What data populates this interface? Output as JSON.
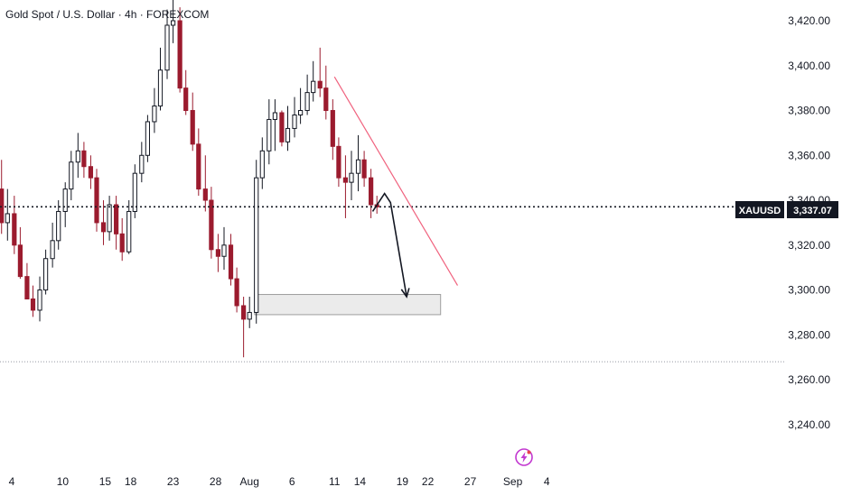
{
  "chart_data": {
    "type": "candlestick",
    "title": "Gold Spot / U.S. Dollar · 4h · FOREXCOM",
    "symbol": "XAUUSD",
    "last_price": 3337.07,
    "last_price_label": "3,337.07",
    "y_axis": {
      "range": [
        3224,
        3431
      ],
      "ticks": [
        3420,
        3400,
        3380,
        3360,
        3340,
        3320,
        3300,
        3280,
        3260,
        3240
      ],
      "tick_labels": [
        "3,420.00",
        "3,400.00",
        "3,380.00",
        "3,360.00",
        "3,340.00",
        "3,320.00",
        "3,300.00",
        "3,280.00",
        "3,260.00",
        "3,240.00"
      ]
    },
    "x_axis": {
      "range": [
        2.8,
        5.1
      ],
      "ticks": [
        4,
        10,
        15,
        18,
        23,
        28,
        32,
        37,
        42,
        45,
        50,
        53,
        58,
        63,
        67
      ],
      "tick_labels": [
        "4",
        "10",
        "15",
        "18",
        "23",
        "28",
        "Aug",
        "6",
        "11",
        "14",
        "19",
        "22",
        "27",
        "Sep",
        "4"
      ],
      "note": "x values are calendar days counted from Jul 1 (Aug 1 = 32)"
    },
    "series": [
      {
        "x": [
          2.8,
          3.5,
          4.3,
          5.0,
          5.8,
          6.5,
          7.3,
          8.0,
          8.8,
          9.5,
          10.3,
          11.0,
          11.8,
          12.5,
          13.3,
          14.0,
          14.8,
          15.5,
          16.3,
          17.0,
          17.8,
          18.5,
          19.3,
          20.0,
          20.8,
          21.5,
          22.3,
          23.0,
          23.8,
          24.5,
          25.3,
          26.0,
          26.8,
          27.5,
          28.3,
          29.0,
          29.8,
          30.5,
          31.3,
          32.0,
          32.8,
          33.5,
          34.3,
          35.0,
          35.8,
          36.5,
          37.3,
          38.0,
          38.8,
          39.5,
          40.3,
          41.0,
          41.8,
          42.5,
          43.3,
          44.0,
          44.8,
          45.5,
          46.3,
          47.0
        ],
        "open": [
          3345,
          3330,
          3334,
          3320,
          3306,
          3296,
          3291,
          3300,
          3314,
          3322,
          3335,
          3345,
          3357,
          3362,
          3355,
          3350,
          3330,
          3326,
          3338,
          3325,
          3317,
          3335,
          3352,
          3360,
          3375,
          3382,
          3398,
          3418,
          3420,
          3390,
          3380,
          3365,
          3345,
          3340,
          3318,
          3315,
          3320,
          3305,
          3293,
          3287,
          3290,
          3350,
          3362,
          3376,
          3379,
          3366,
          3372,
          3378,
          3380,
          3388,
          3393,
          3390,
          3380,
          3364,
          3350,
          3348,
          3352,
          3358,
          3350,
          3338
        ],
        "high": [
          3358,
          3345,
          3342,
          3328,
          3312,
          3302,
          3306,
          3318,
          3330,
          3340,
          3348,
          3362,
          3370,
          3366,
          3360,
          3354,
          3340,
          3342,
          3342,
          3332,
          3340,
          3356,
          3366,
          3378,
          3390,
          3408,
          3425,
          3432,
          3426,
          3398,
          3388,
          3372,
          3360,
          3346,
          3325,
          3328,
          3325,
          3310,
          3297,
          3297,
          3358,
          3368,
          3385,
          3385,
          3380,
          3382,
          3386,
          3390,
          3396,
          3402,
          3408,
          3400,
          3385,
          3368,
          3360,
          3362,
          3369,
          3362,
          3354,
          3342
        ],
        "low": [
          3325,
          3322,
          3316,
          3305,
          3296,
          3288,
          3286,
          3298,
          3310,
          3318,
          3328,
          3340,
          3350,
          3350,
          3345,
          3326,
          3320,
          3322,
          3318,
          3313,
          3316,
          3332,
          3348,
          3357,
          3370,
          3380,
          3394,
          3410,
          3388,
          3378,
          3362,
          3342,
          3335,
          3314,
          3308,
          3309,
          3302,
          3290,
          3270,
          3283,
          3285,
          3345,
          3356,
          3362,
          3364,
          3362,
          3368,
          3374,
          3378,
          3384,
          3386,
          3376,
          3358,
          3346,
          3332,
          3340,
          3344,
          3346,
          3332,
          3334
        ],
        "close": [
          3330,
          3334,
          3320,
          3306,
          3296,
          3291,
          3300,
          3314,
          3322,
          3335,
          3345,
          3357,
          3362,
          3355,
          3350,
          3330,
          3326,
          3338,
          3325,
          3317,
          3335,
          3352,
          3360,
          3375,
          3382,
          3398,
          3418,
          3420,
          3390,
          3380,
          3365,
          3345,
          3340,
          3318,
          3315,
          3320,
          3305,
          3293,
          3287,
          3290,
          3350,
          3362,
          3376,
          3379,
          3366,
          3372,
          3378,
          3380,
          3388,
          3393,
          3390,
          3380,
          3364,
          3350,
          3348,
          3352,
          3358,
          3350,
          3338,
          3337
        ]
      }
    ],
    "annotations": {
      "price_line": 3337.07,
      "low_line": 3268,
      "trendline": [
        {
          "x": 42.0,
          "y": 3395
        },
        {
          "x": 56.5,
          "y": 3302
        }
      ],
      "forecast_path": [
        {
          "x": 46.5,
          "y": 3335
        },
        {
          "x": 47.9,
          "y": 3343
        },
        {
          "x": 48.6,
          "y": 3339
        },
        {
          "x": 50.5,
          "y": 3297
        }
      ],
      "target_zone": {
        "x_start": 32.6,
        "x_end": 54.5,
        "y_low": 3289,
        "y_high": 3298
      }
    },
    "colors": {
      "up": "#131722",
      "down": "#9b1b2e",
      "trendline": "#f0627e",
      "price_line": "#131722",
      "zone_fill": "#ebebeb",
      "zone_border": "#9e9e9e"
    },
    "grid": false,
    "legend": "none",
    "icon": "lightning-icon"
  }
}
